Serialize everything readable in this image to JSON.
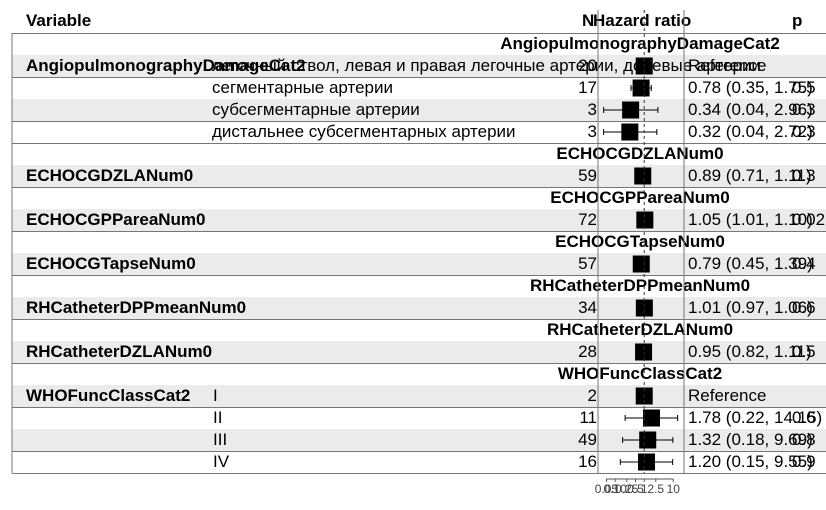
{
  "header": {
    "variable": "Variable",
    "n": "N",
    "hazard_ratio": "Hazard ratio",
    "p": "p"
  },
  "chart_data": {
    "type": "forest",
    "title": "",
    "xlabel": "",
    "x_scale": "log",
    "reference_line": 1,
    "x_ticks": [
      "0.05",
      "0.10",
      "0.25",
      "0.5",
      "1",
      "2.5",
      "10"
    ],
    "groups": [
      {
        "section_title": "AngiopulmonographyDamageCat2",
        "variable": "AngiopulmonographyDamageCat2",
        "rows": [
          {
            "level": "легочный ствол, левая и правая легочные артерии, долевые артерии",
            "n": "20",
            "hr_text": "Reference",
            "hr": 1,
            "ref": true
          },
          {
            "level": "сегментарные артерии",
            "n": "17",
            "hr_text": "0.78 (0.35, 1.75)",
            "p_text": "0.5",
            "hr": 0.78,
            "lo": 0.35,
            "hi": 1.75,
            "ref": false
          },
          {
            "level": "субсегментарные артерии",
            "n": "3",
            "hr_text": "0.34 (0.04, 2.96)",
            "p_text": "0.3",
            "hr": 0.34,
            "lo": 0.04,
            "hi": 2.96,
            "ref": false
          },
          {
            "level": "дистальнее субсегментарных артерии",
            "n": "3",
            "hr_text": "0.32 (0.04, 2.72)",
            "p_text": "0.3",
            "hr": 0.32,
            "lo": 0.04,
            "hi": 2.72,
            "ref": false
          }
        ]
      },
      {
        "section_title": "ECHOCGDZLANum0",
        "variable": "ECHOCGDZLANum0",
        "rows": [
          {
            "level": "",
            "n": "59",
            "hr_text": "0.89 (0.71, 1.11)",
            "p_text": "0.3",
            "hr": 0.89,
            "lo": 0.71,
            "hi": 1.11,
            "ref": false
          }
        ]
      },
      {
        "section_title": "ECHOCGPPareaNum0",
        "variable": "ECHOCGPPareaNum0",
        "rows": [
          {
            "level": "",
            "n": "72",
            "hr_text": "1.05 (1.01, 1.10)",
            "p_text": "0.02",
            "hr": 1.05,
            "lo": 1.01,
            "hi": 1.1,
            "ref": false
          }
        ]
      },
      {
        "section_title": "ECHOCGTapseNum0",
        "variable": "ECHOCGTapseNum0",
        "rows": [
          {
            "level": "",
            "n": "57",
            "hr_text": "0.79 (0.45, 1.39)",
            "p_text": "0.4",
            "hr": 0.79,
            "lo": 0.45,
            "hi": 1.39,
            "ref": false
          }
        ]
      },
      {
        "section_title": "RHCatheterDPPmeanNum0",
        "variable": "RHCatheterDPPmeanNum0",
        "rows": [
          {
            "level": "",
            "n": "34",
            "hr_text": "1.01 (0.97, 1.06)",
            "p_text": "0.6",
            "hr": 1.01,
            "lo": 0.97,
            "hi": 1.06,
            "ref": false
          }
        ]
      },
      {
        "section_title": "RHCatheterDZLANum0",
        "variable": "RHCatheterDZLANum0",
        "rows": [
          {
            "level": "",
            "n": "28",
            "hr_text": "0.95 (0.82, 1.11)",
            "p_text": "0.5",
            "hr": 0.95,
            "lo": 0.82,
            "hi": 1.11,
            "ref": false
          }
        ]
      },
      {
        "section_title": "WHOFuncClassCat2",
        "variable": "WHOFuncClassCat2",
        "rows": [
          {
            "level": "I",
            "n": "2",
            "hr_text": "Reference",
            "hr": 1,
            "ref": true
          },
          {
            "level": "II",
            "n": "11",
            "hr_text": "1.78 (0.22, 14.15)",
            "p_text": "0.6",
            "hr": 1.78,
            "lo": 0.22,
            "hi": 14.15,
            "ref": false
          },
          {
            "level": "III",
            "n": "49",
            "hr_text": "1.32 (0.18, 9.69)",
            "p_text": "0.8",
            "hr": 1.32,
            "lo": 0.18,
            "hi": 9.69,
            "ref": false
          },
          {
            "level": "IV",
            "n": "16",
            "hr_text": "1.20 (0.15, 9.55)",
            "p_text": "0.9",
            "hr": 1.2,
            "lo": 0.15,
            "hi": 9.55,
            "ref": false
          }
        ]
      }
    ]
  }
}
